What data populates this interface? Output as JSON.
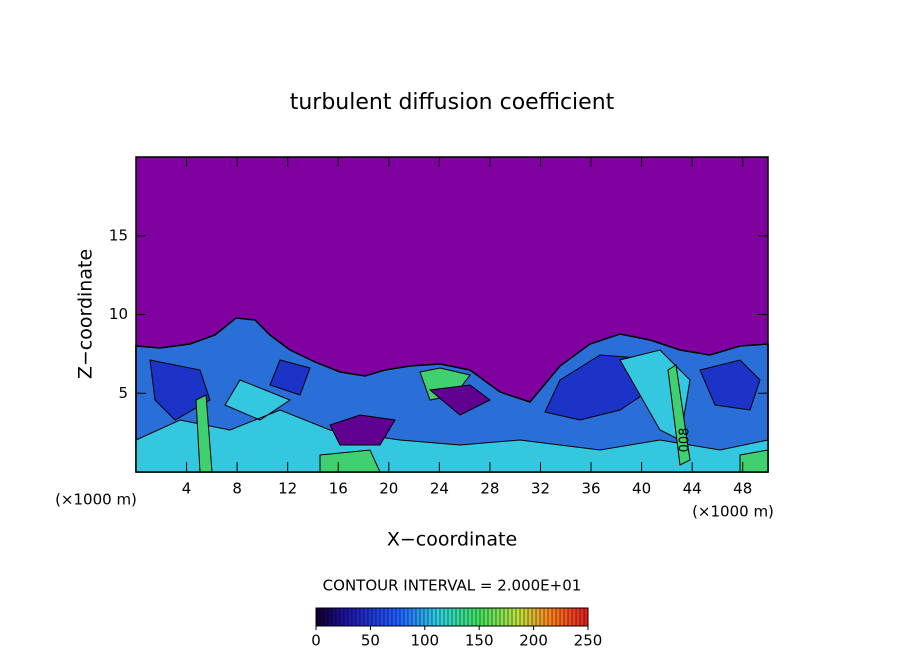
{
  "chart_data": {
    "type": "contour",
    "title": "turbulent diffusion coefficient",
    "x_label": "X−coordinate",
    "y_label": "Z−coordinate",
    "x_units": [
      "(×1000 m)",
      "(×1000 m)"
    ],
    "annotation": "CONTOUR INTERVAL = 2.000E+01",
    "contour_label": "008",
    "xlim": [
      0,
      50
    ],
    "xticks": [
      4,
      8,
      12,
      16,
      20,
      24,
      28,
      32,
      36,
      40,
      44,
      48
    ],
    "ylim": [
      0,
      20
    ],
    "yticks": [
      5,
      10,
      15
    ],
    "colorbar": {
      "lim": [
        0,
        250
      ],
      "ticks": [
        0,
        50,
        100,
        150,
        200,
        250
      ]
    }
  }
}
